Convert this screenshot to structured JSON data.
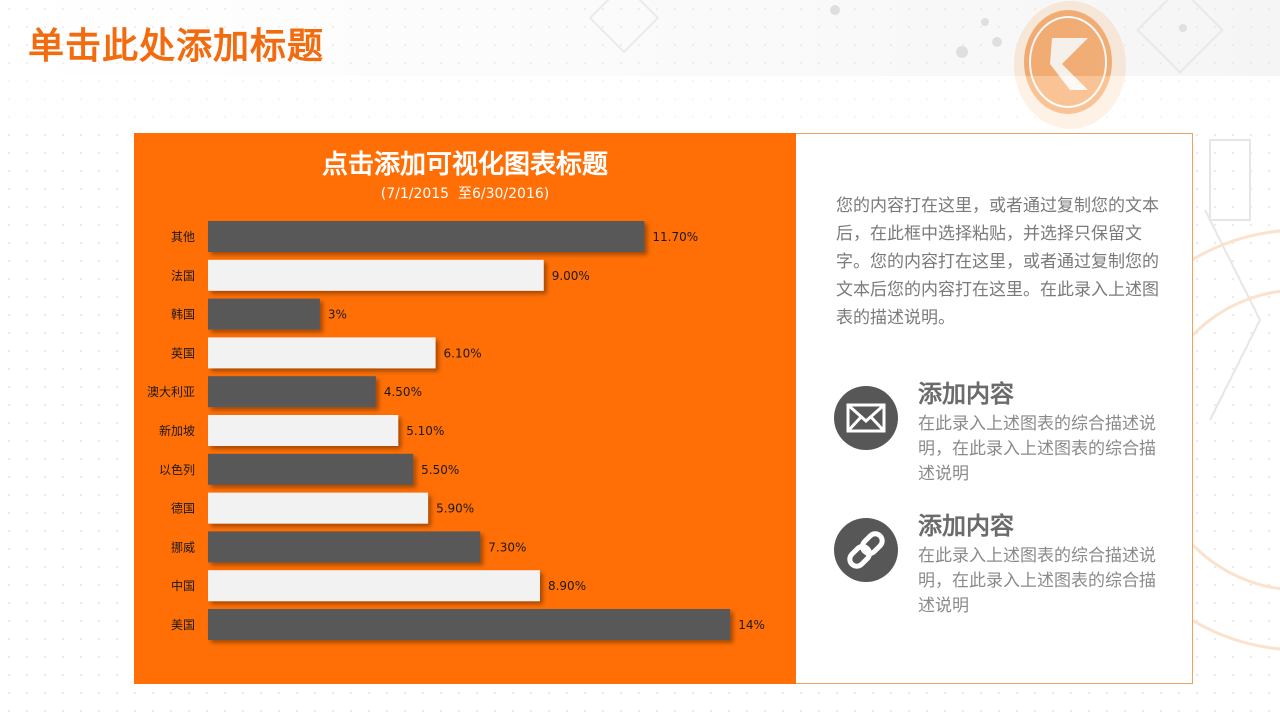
{
  "slide": {
    "title": "单击此处添加标题"
  },
  "chart_data": {
    "type": "bar",
    "orientation": "horizontal",
    "title": "点击添加可视化图表标题",
    "subtitle": "(7/1/2015  至6/30/2016)",
    "categories": [
      "其他",
      "法国",
      "韩国",
      "英国",
      "澳大利亚",
      "新加坡",
      "以色列",
      "德国",
      "挪威",
      "中国",
      "美国"
    ],
    "values": [
      11.7,
      9.0,
      3,
      6.1,
      4.5,
      5.1,
      5.5,
      5.9,
      7.3,
      8.9,
      14
    ],
    "value_labels": [
      "11.70%",
      "9.00%",
      "3%",
      "6.10%",
      "4.50%",
      "5.10%",
      "5.50%",
      "5.90%",
      "7.30%",
      "8.90%",
      "14%"
    ],
    "xlim": [
      0,
      14
    ],
    "grid": false,
    "colors": {
      "panel": "#ff6f05",
      "dark_bar": "#595959",
      "light_bar": "#f2f2f2",
      "text": "#1a1a1a"
    }
  },
  "side_panel": {
    "intro": "您的内容打在这里，或者通过复制您的文本后，在此框中选择粘贴，并选择只保留文字。您的内容打在这里，或者通过复制您的文本后您的内容打在这里。在此录入上述图表的描述说明。",
    "features": [
      {
        "icon": "mail-icon",
        "title": "添加内容",
        "text": "在此录入上述图表的综合描述说明，在此录入上述图表的综合描述说明"
      },
      {
        "icon": "link-icon",
        "title": "添加内容",
        "text": "在此录入上述图表的综合描述说明，在此录入上述图表的综合描述说明"
      }
    ]
  },
  "colors": {
    "accent": "#f26b0f",
    "icon_bg": "#575757",
    "body_text": "#7a7a7a"
  }
}
